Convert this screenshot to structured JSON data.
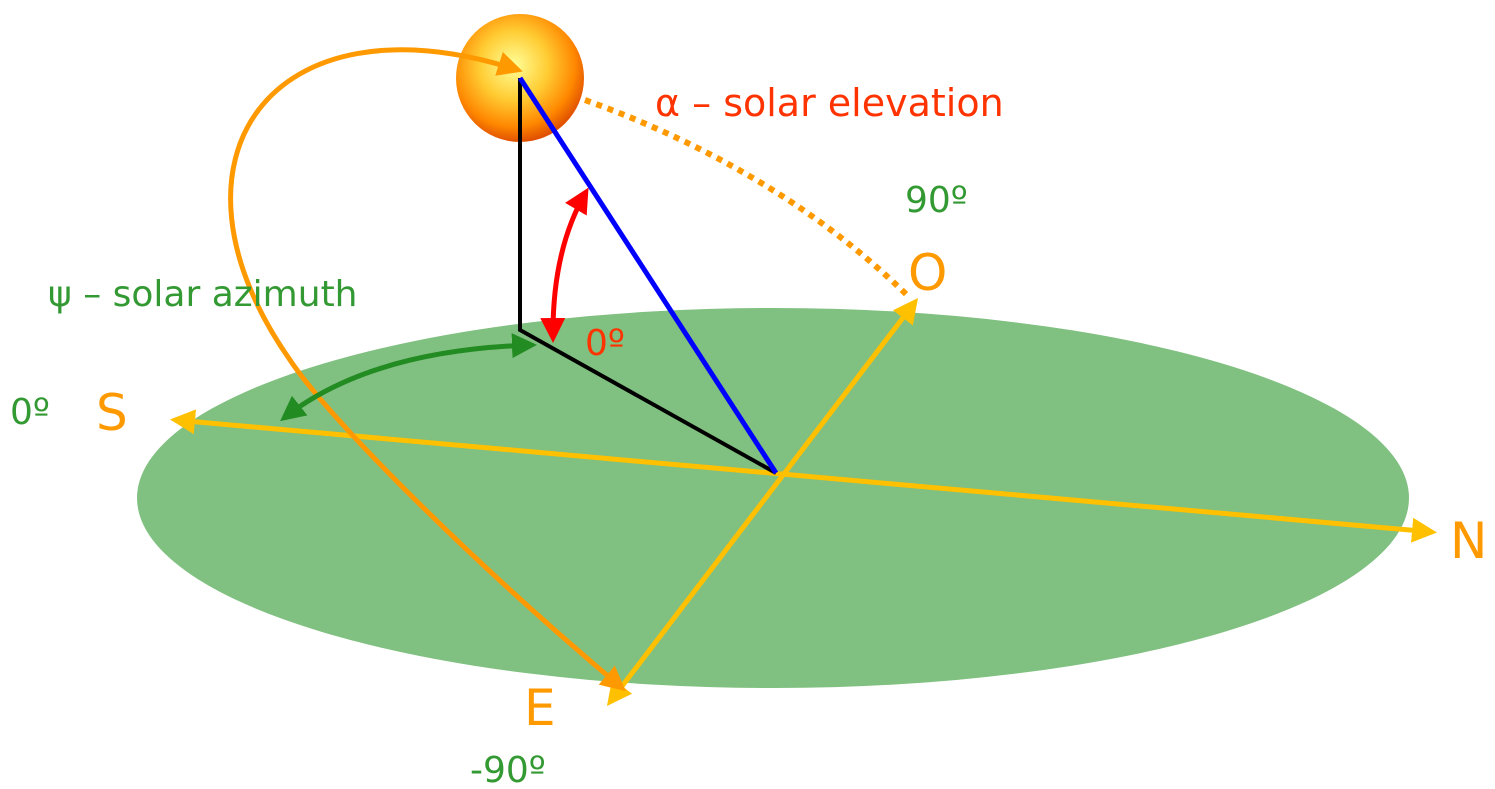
{
  "labels": {
    "elevation": "α – solar elevation",
    "azimuth": "ψ – solar azimuth",
    "elevation_zero": "0º",
    "azimuth_zero": "0º",
    "azimuth_west": "90º",
    "azimuth_east": "-90º"
  },
  "directions": {
    "south": "S",
    "north": "N",
    "east": "E",
    "west": "O"
  }
}
